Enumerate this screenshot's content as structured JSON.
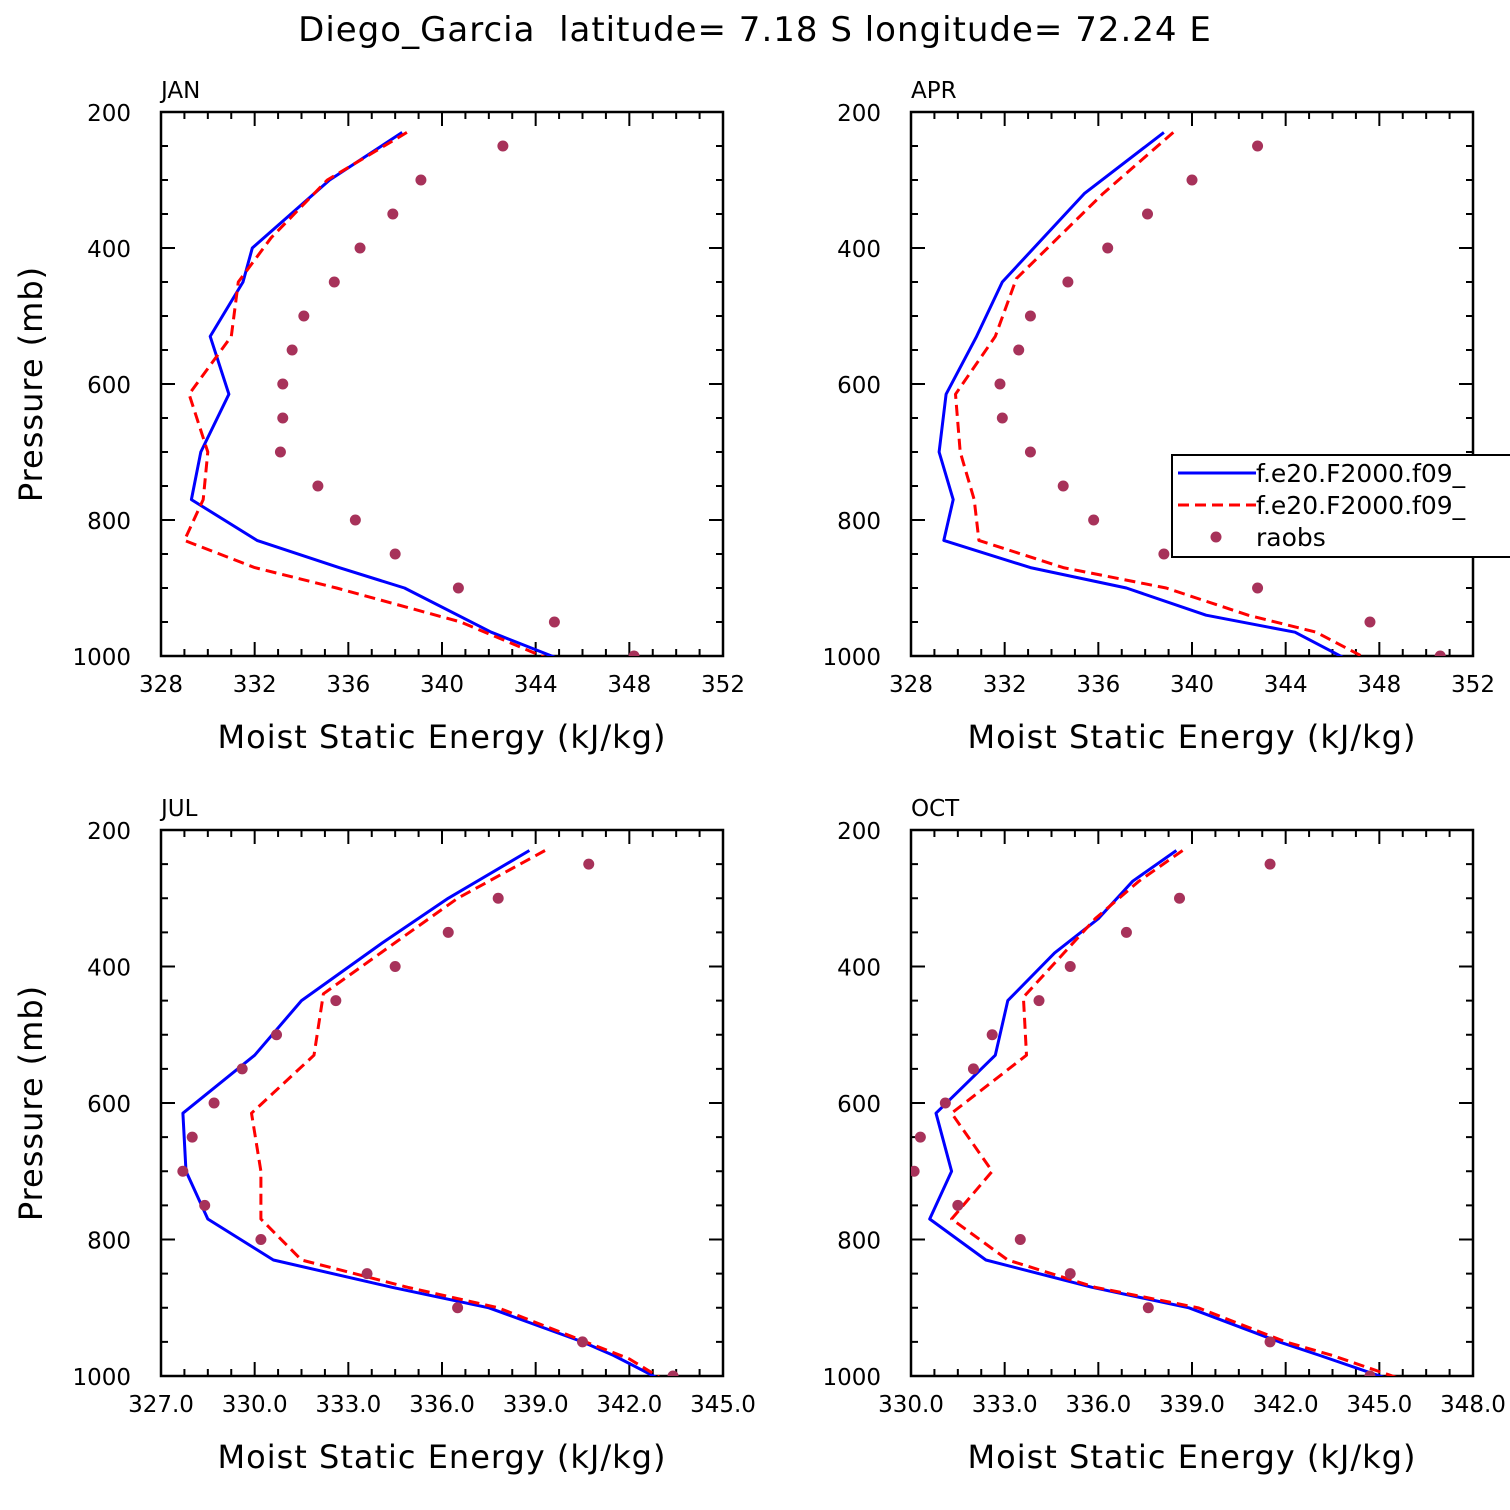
{
  "title": "Diego_Garcia  latitude= 7.18 S longitude= 72.24 E",
  "legend": {
    "entries": [
      {
        "label": "f.e20.F2000.f09_",
        "style": "solid",
        "color": "#0000ff"
      },
      {
        "label": "f.e20.F2000.f09_",
        "style": "dashed",
        "color": "#ff0000"
      },
      {
        "label": "raobs",
        "style": "marker",
        "color": "#a7325a"
      }
    ]
  },
  "chart_data": [
    {
      "type": "line",
      "title": "JAN",
      "xlabel": "Moist Static Energy (kJ/kg)",
      "ylabel": "Pressure (mb)",
      "xlim": [
        328,
        352
      ],
      "ylim": [
        1000,
        200
      ],
      "xticks": [
        328,
        332,
        336,
        340,
        344,
        348,
        352
      ],
      "xtick_labels": [
        "328",
        "332",
        "336",
        "340",
        "344",
        "348",
        "352"
      ],
      "yticks": [
        200,
        400,
        600,
        800,
        1000
      ],
      "ytick_labels": [
        "200",
        "400",
        "600",
        "800",
        "1000"
      ],
      "series": [
        {
          "style": "solid",
          "color": "#0000ff",
          "x": [
            338.3,
            335.2,
            331.9,
            331.5,
            330.1,
            330.9,
            329.7,
            329.3,
            332.1,
            335.6,
            338.4,
            342.1,
            344.9
          ],
          "y": [
            230,
            300,
            400,
            450,
            530,
            615,
            700,
            770,
            830,
            870,
            900,
            965,
            1003
          ]
        },
        {
          "style": "dashed",
          "color": "#ff0000",
          "x": [
            338.5,
            335.1,
            332.7,
            331.3,
            331.0,
            329.2,
            330.0,
            329.8,
            329.0,
            332.0,
            335.5,
            340.8,
            344.6
          ],
          "y": [
            230,
            300,
            385,
            450,
            530,
            615,
            700,
            770,
            830,
            870,
            900,
            950,
            1005
          ]
        },
        {
          "style": "marker",
          "color": "#a7325a",
          "x": [
            342.6,
            339.1,
            337.9,
            336.5,
            335.4,
            334.1,
            333.6,
            333.2,
            333.2,
            333.1,
            334.7,
            336.3,
            338.0,
            340.7,
            344.8,
            348.2
          ],
          "y": [
            250,
            300,
            350,
            400,
            450,
            500,
            550,
            600,
            650,
            700,
            750,
            800,
            850,
            900,
            950,
            1000
          ]
        }
      ]
    },
    {
      "type": "line",
      "title": "APR",
      "xlabel": "Moist Static Energy (kJ/kg)",
      "ylabel": "",
      "xlim": [
        328,
        352
      ],
      "ylim": [
        1000,
        200
      ],
      "xticks": [
        328,
        332,
        336,
        340,
        344,
        348,
        352
      ],
      "xtick_labels": [
        "328",
        "332",
        "336",
        "340",
        "344",
        "348",
        "352"
      ],
      "yticks": [
        200,
        400,
        600,
        800,
        1000
      ],
      "ytick_labels": [
        "200",
        "400",
        "600",
        "800",
        "1000"
      ],
      "series": [
        {
          "style": "solid",
          "color": "#0000ff",
          "x": [
            338.8,
            335.4,
            331.9,
            330.8,
            329.5,
            329.2,
            329.8,
            329.4,
            333.1,
            337.2,
            340.6,
            344.4,
            346.5
          ],
          "y": [
            230,
            320,
            450,
            530,
            615,
            700,
            770,
            830,
            870,
            900,
            940,
            965,
            1003
          ]
        },
        {
          "style": "dashed",
          "color": "#ff0000",
          "x": [
            339.2,
            336.2,
            332.5,
            331.6,
            329.9,
            330.1,
            330.7,
            330.9,
            334.5,
            338.9,
            342.4,
            345.3,
            347.4
          ],
          "y": [
            230,
            320,
            445,
            530,
            615,
            700,
            770,
            830,
            870,
            900,
            940,
            965,
            1003
          ]
        },
        {
          "style": "marker",
          "color": "#a7325a",
          "x": [
            342.8,
            340.0,
            338.1,
            336.4,
            334.7,
            333.1,
            332.6,
            331.8,
            331.9,
            333.1,
            334.5,
            335.8,
            338.8,
            342.8,
            347.6,
            350.6
          ],
          "y": [
            250,
            300,
            350,
            400,
            450,
            500,
            550,
            600,
            650,
            700,
            750,
            800,
            850,
            900,
            950,
            1000
          ]
        }
      ]
    },
    {
      "type": "line",
      "title": "JUL",
      "xlabel": "Moist Static Energy (kJ/kg)",
      "ylabel": "Pressure (mb)",
      "xlim": [
        327,
        345
      ],
      "ylim": [
        1000,
        200
      ],
      "xticks": [
        327,
        330,
        333,
        336,
        339,
        342,
        345
      ],
      "xtick_labels": [
        "327.0",
        "330.0",
        "333.0",
        "336.0",
        "339.0",
        "342.0",
        "345.0"
      ],
      "yticks": [
        200,
        400,
        600,
        800,
        1000
      ],
      "ytick_labels": [
        "200",
        "400",
        "600",
        "800",
        "1000"
      ],
      "series": [
        {
          "style": "solid",
          "color": "#0000ff",
          "x": [
            338.8,
            336.2,
            334.1,
            331.5,
            330.0,
            327.7,
            327.8,
            328.5,
            330.6,
            334.4,
            337.5,
            340.5,
            341.5,
            342.9
          ],
          "y": [
            230,
            300,
            365,
            450,
            530,
            615,
            700,
            770,
            830,
            870,
            900,
            950,
            970,
            1003
          ]
        },
        {
          "style": "dashed",
          "color": "#ff0000",
          "x": [
            339.3,
            336.5,
            334.5,
            332.2,
            331.9,
            329.9,
            330.2,
            330.2,
            331.5,
            334.9,
            337.8,
            340.6,
            342.0,
            343.0
          ],
          "y": [
            230,
            300,
            365,
            440,
            530,
            615,
            700,
            770,
            830,
            870,
            900,
            950,
            975,
            1003
          ]
        },
        {
          "style": "marker",
          "color": "#a7325a",
          "x": [
            340.7,
            337.8,
            336.2,
            334.5,
            332.6,
            330.7,
            329.6,
            328.7,
            328.0,
            327.7,
            328.4,
            330.2,
            333.6,
            336.5,
            340.5,
            343.4
          ],
          "y": [
            250,
            300,
            350,
            400,
            450,
            500,
            550,
            600,
            650,
            700,
            750,
            800,
            850,
            900,
            950,
            1000
          ]
        }
      ]
    },
    {
      "type": "line",
      "title": "OCT",
      "xlabel": "Moist Static Energy (kJ/kg)",
      "ylabel": "",
      "xlim": [
        330,
        348
      ],
      "ylim": [
        1000,
        200
      ],
      "xticks": [
        330,
        333,
        336,
        339,
        342,
        345,
        348
      ],
      "xtick_labels": [
        "330.0",
        "333.0",
        "336.0",
        "339.0",
        "342.0",
        "345.0",
        "348.0"
      ],
      "yticks": [
        200,
        400,
        600,
        800,
        1000
      ],
      "ytick_labels": [
        "200",
        "400",
        "600",
        "800",
        "1000"
      ],
      "series": [
        {
          "style": "solid",
          "color": "#0000ff",
          "x": [
            338.5,
            337.1,
            336.0,
            334.6,
            333.1,
            332.7,
            330.8,
            331.3,
            330.6,
            332.4,
            335.8,
            338.9,
            341.8,
            343.1,
            345.2
          ],
          "y": [
            230,
            275,
            330,
            380,
            450,
            530,
            615,
            700,
            770,
            830,
            870,
            900,
            950,
            970,
            1003
          ]
        },
        {
          "style": "dashed",
          "color": "#ff0000",
          "x": [
            338.7,
            337.3,
            335.9,
            334.9,
            333.6,
            333.7,
            331.3,
            332.6,
            331.3,
            333.1,
            335.9,
            339.2,
            342.0,
            343.5,
            345.6
          ],
          "y": [
            230,
            275,
            330,
            380,
            445,
            530,
            615,
            700,
            770,
            830,
            870,
            900,
            950,
            970,
            1003
          ]
        },
        {
          "style": "marker",
          "color": "#a7325a",
          "x": [
            341.5,
            338.6,
            336.9,
            335.1,
            334.1,
            332.6,
            332.0,
            331.1,
            330.3,
            330.1,
            331.5,
            333.5,
            335.1,
            337.6,
            341.5,
            344.7
          ],
          "y": [
            250,
            300,
            350,
            400,
            450,
            500,
            550,
            600,
            650,
            700,
            750,
            800,
            850,
            900,
            950,
            1000
          ]
        }
      ]
    }
  ]
}
